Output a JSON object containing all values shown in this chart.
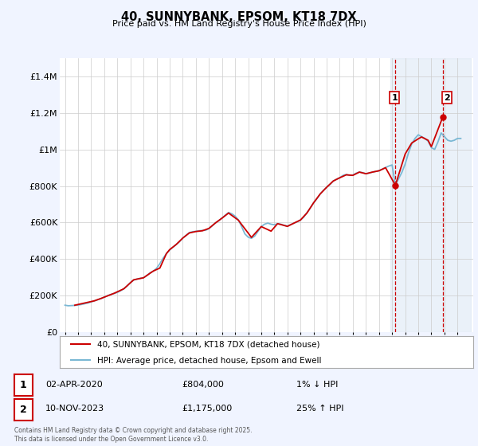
{
  "title": "40, SUNNYBANK, EPSOM, KT18 7DX",
  "subtitle": "Price paid vs. HM Land Registry's House Price Index (HPI)",
  "bg_color": "#f0f4ff",
  "plot_bg_color": "#ffffff",
  "grid_color": "#cccccc",
  "red_line_color": "#cc0000",
  "blue_line_color": "#7ab8d4",
  "shade_color": "#dde8f5",
  "vline_color": "#cc0000",
  "ylim": [
    0,
    1500000
  ],
  "yticks": [
    0,
    200000,
    400000,
    600000,
    800000,
    1000000,
    1200000,
    1400000
  ],
  "ytick_labels": [
    "£0",
    "£200K",
    "£400K",
    "£600K",
    "£800K",
    "£1M",
    "£1.2M",
    "£1.4M"
  ],
  "marker1_date": 2020.25,
  "marker1_price": 804000,
  "marker2_date": 2023.86,
  "marker2_price": 1175000,
  "legend_label1": "40, SUNNYBANK, EPSOM, KT18 7DX (detached house)",
  "legend_label2": "HPI: Average price, detached house, Epsom and Ewell",
  "annotation1_date": "02-APR-2020",
  "annotation1_price": "£804,000",
  "annotation1_hpi": "1% ↓ HPI",
  "annotation2_date": "10-NOV-2023",
  "annotation2_price": "£1,175,000",
  "annotation2_hpi": "25% ↑ HPI",
  "footer": "Contains HM Land Registry data © Crown copyright and database right 2025.\nThis data is licensed under the Open Government Licence v3.0.",
  "hpi_years": [
    1995.0,
    1995.25,
    1995.5,
    1995.75,
    1996.0,
    1996.25,
    1996.5,
    1996.75,
    1997.0,
    1997.25,
    1997.5,
    1997.75,
    1998.0,
    1998.25,
    1998.5,
    1998.75,
    1999.0,
    1999.25,
    1999.5,
    1999.75,
    2000.0,
    2000.25,
    2000.5,
    2000.75,
    2001.0,
    2001.25,
    2001.5,
    2001.75,
    2002.0,
    2002.25,
    2002.5,
    2002.75,
    2003.0,
    2003.25,
    2003.5,
    2003.75,
    2004.0,
    2004.25,
    2004.5,
    2004.75,
    2005.0,
    2005.25,
    2005.5,
    2005.75,
    2006.0,
    2006.25,
    2006.5,
    2006.75,
    2007.0,
    2007.25,
    2007.5,
    2007.75,
    2008.0,
    2008.25,
    2008.5,
    2008.75,
    2009.0,
    2009.25,
    2009.5,
    2009.75,
    2010.0,
    2010.25,
    2010.5,
    2010.75,
    2011.0,
    2011.25,
    2011.5,
    2011.75,
    2012.0,
    2012.25,
    2012.5,
    2012.75,
    2013.0,
    2013.25,
    2013.5,
    2013.75,
    2014.0,
    2014.25,
    2014.5,
    2014.75,
    2015.0,
    2015.25,
    2015.5,
    2015.75,
    2016.0,
    2016.25,
    2016.5,
    2016.75,
    2017.0,
    2017.25,
    2017.5,
    2017.75,
    2018.0,
    2018.25,
    2018.5,
    2018.75,
    2019.0,
    2019.25,
    2019.5,
    2019.75,
    2020.0,
    2020.25,
    2020.5,
    2020.75,
    2021.0,
    2021.25,
    2021.5,
    2021.75,
    2022.0,
    2022.25,
    2022.5,
    2022.75,
    2023.0,
    2023.25,
    2023.5,
    2023.75,
    2024.0,
    2024.25,
    2024.5,
    2024.75,
    2025.0,
    2025.25
  ],
  "hpi_vals": [
    148000,
    145000,
    146000,
    147000,
    149000,
    152000,
    156000,
    160000,
    166000,
    172000,
    178000,
    184000,
    192000,
    200000,
    207000,
    212000,
    218000,
    227000,
    238000,
    253000,
    272000,
    285000,
    291000,
    295000,
    298000,
    310000,
    325000,
    334000,
    350000,
    375000,
    405000,
    430000,
    450000,
    465000,
    480000,
    495000,
    515000,
    530000,
    545000,
    550000,
    552000,
    555000,
    557000,
    558000,
    567000,
    582000,
    598000,
    610000,
    625000,
    640000,
    655000,
    648000,
    635000,
    615000,
    578000,
    538000,
    520000,
    514000,
    526000,
    552000,
    578000,
    591000,
    597000,
    591000,
    588000,
    594000,
    591000,
    585000,
    581000,
    589000,
    597000,
    604000,
    614000,
    630000,
    655000,
    680000,
    708000,
    730000,
    756000,
    776000,
    793000,
    808000,
    827000,
    837000,
    845000,
    858000,
    863000,
    858000,
    860000,
    870000,
    876000,
    873000,
    867000,
    871000,
    876000,
    880000,
    884000,
    892000,
    901000,
    909000,
    915000,
    804000,
    840000,
    875000,
    920000,
    980000,
    1030000,
    1060000,
    1080000,
    1070000,
    1060000,
    1045000,
    1010000,
    1000000,
    1040000,
    1090000,
    1070000,
    1050000,
    1045000,
    1050000,
    1060000,
    1060000
  ],
  "price_years": [
    1995.75,
    1997.25,
    1997.75,
    1998.75,
    1999.5,
    2000.25,
    2001.0,
    2001.75,
    2002.25,
    2002.75,
    2003.0,
    2003.5,
    2004.0,
    2004.5,
    2005.0,
    2005.5,
    2006.0,
    2006.5,
    2007.0,
    2007.5,
    2008.25,
    2009.25,
    2010.0,
    2010.75,
    2011.25,
    2012.0,
    2012.5,
    2013.0,
    2013.5,
    2014.0,
    2014.5,
    2015.0,
    2015.5,
    2016.0,
    2016.5,
    2017.0,
    2017.5,
    2018.0,
    2018.5,
    2019.0,
    2019.5,
    2020.25,
    2021.0,
    2021.5,
    2022.0,
    2022.25,
    2022.75,
    2023.0,
    2023.86
  ],
  "price_vals": [
    148000,
    172000,
    185000,
    213000,
    238000,
    287000,
    298000,
    335000,
    351000,
    430000,
    452000,
    480000,
    515000,
    543000,
    551000,
    555000,
    568000,
    598000,
    624000,
    652000,
    613000,
    519000,
    578000,
    553000,
    594000,
    579000,
    597000,
    614000,
    653000,
    708000,
    756000,
    793000,
    827000,
    845000,
    861000,
    858000,
    876000,
    867000,
    876000,
    883000,
    900000,
    804000,
    975000,
    1035000,
    1058000,
    1068000,
    1050000,
    1015000,
    1175000
  ]
}
